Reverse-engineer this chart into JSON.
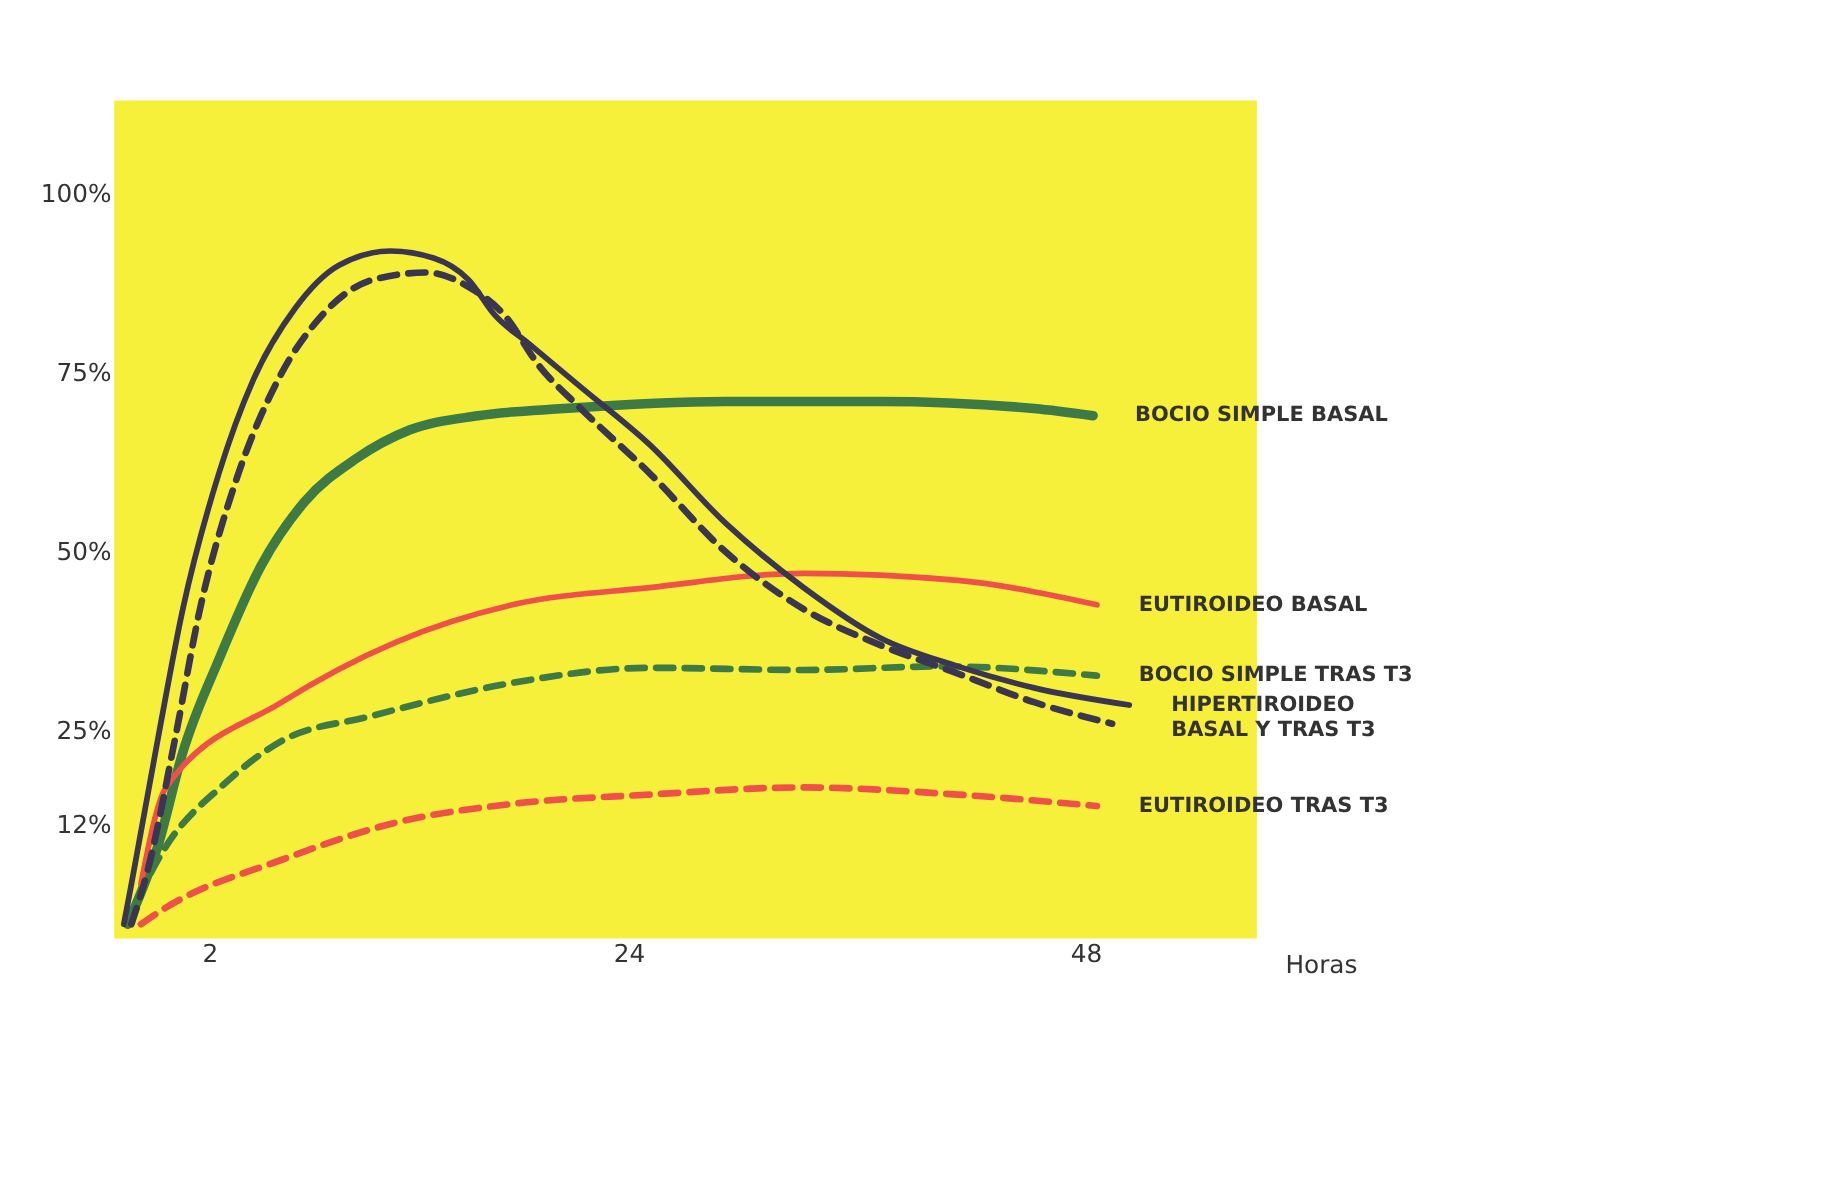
{
  "chart_data": {
    "type": "line",
    "xlabel": "Horas",
    "xlim": [
      -3,
      57
    ],
    "xticks": [
      2,
      24,
      48
    ],
    "ylim": [
      -4,
      113
    ],
    "yticks": [
      {
        "value": 100,
        "label": "100%"
      },
      {
        "value": 75,
        "label": "75%"
      },
      {
        "value": 50,
        "label": "50%"
      },
      {
        "value": 25,
        "label": "25%"
      },
      {
        "value": 12,
        "label": "12%"
      }
    ],
    "grid": false,
    "marker": "none",
    "series": [
      {
        "name": "BOCIO SIMPLE BASAL",
        "color": "#3d7a45",
        "line_style": "solid",
        "x": [
          -2.3,
          -0.7,
          0.6,
          2.5,
          4.7,
          7,
          9.7,
          12.5,
          16.1,
          20.6,
          29.1,
          37.2,
          45.3,
          48.4
        ],
        "values": [
          -2,
          9,
          22,
          35,
          48,
          57,
          63,
          67,
          69,
          70,
          71,
          71,
          70,
          69
        ]
      },
      {
        "name": "EUTIROIDEO BASAL",
        "color": "#f0504a",
        "line_style": "solid",
        "x": [
          -1.6,
          -0.3,
          5.8,
          11.8,
          17.9,
          25.1,
          33.2,
          41.3,
          48.6
        ],
        "values": [
          3.6,
          17,
          29,
          37.4,
          42.6,
          45,
          47,
          46,
          42.6
        ]
      },
      {
        "name": "BOCIO SIMPLE TRAS T3",
        "color": "#3d7a45",
        "line_style": "dashed",
        "x": [
          -2.4,
          -0.3,
          2.7,
          5.8,
          10.4,
          17.9,
          25.1,
          33.2,
          40.5,
          48.6
        ],
        "values": [
          -2,
          8.8,
          17.4,
          23.6,
          27,
          31.7,
          33.8,
          33.5,
          34,
          32.7
        ]
      },
      {
        "name": "HIPERTIROIDEO\nBASAL Y TRAS T3",
        "color": "#3a3550",
        "line_style": "solid",
        "x": [
          -2.5,
          -2.1,
          -0.7,
          0.6,
          2.5,
          4.3,
          6.5,
          8.8,
          11.5,
          13.8,
          15.6,
          17,
          18.8,
          21.5,
          25.1,
          29.1,
          33.2,
          37.2,
          41.3,
          45.3,
          50.3
        ],
        "values": [
          -2,
          3.6,
          24,
          42,
          61,
          74,
          84,
          90,
          92,
          91,
          88,
          83,
          79,
          73,
          65,
          54,
          45,
          38,
          34,
          31,
          28.6
        ]
      },
      {
        "color": "#3a3550",
        "line_style": "dashed",
        "x": [
          -2.1,
          -1.2,
          0.2,
          1.5,
          3.4,
          5.6,
          7.9,
          10.6,
          13.4,
          15.6,
          17.5,
          19.3,
          21.5,
          25.1,
          29.1,
          33.2,
          37.2,
          41.3,
          45.3,
          49.4
        ],
        "values": [
          -2,
          6,
          24,
          42,
          60,
          74,
          83,
          88,
          89,
          87,
          83,
          76,
          70,
          61,
          50,
          42,
          37,
          33,
          29,
          26
        ]
      },
      {
        "name": "EUTIROIDEO TRAS T3",
        "color": "#f0504a",
        "line_style": "dashed",
        "x": [
          -1.6,
          -0.3,
          5.8,
          11.8,
          17.9,
          25.1,
          33.2,
          41.3,
          48.6
        ],
        "values": [
          -2,
          0.3,
          7,
          12.2,
          14.8,
          16.1,
          17.1,
          16.1,
          14.5
        ]
      }
    ]
  }
}
